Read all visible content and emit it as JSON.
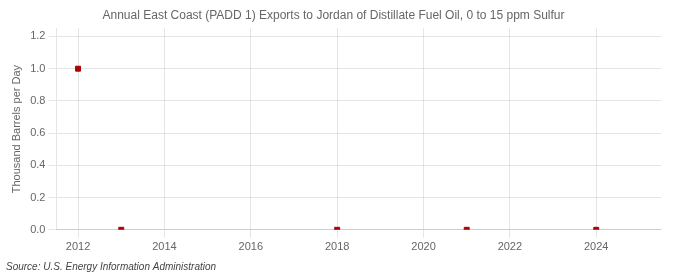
{
  "chart_data": {
    "type": "scatter",
    "title": "Annual East Coast (PADD 1) Exports to Jordan of Distillate Fuel Oil, 0 to 15 ppm Sulfur",
    "ylabel": "Thousand Barrels per Day",
    "source": "Source: U.S. Energy Information Administration",
    "x": [
      2012,
      2013,
      2018,
      2021,
      2024
    ],
    "values": [
      1.0,
      0.0,
      0.0,
      0.0,
      0.0
    ],
    "color": "#aa0000",
    "marker": "square",
    "xlim": [
      2011.5,
      2025.5
    ],
    "ylim": [
      0.0,
      1.25
    ],
    "xticks": [
      2012,
      2014,
      2016,
      2018,
      2020,
      2022,
      2024
    ],
    "yticks": [
      {
        "value": 0.0,
        "label": "0.0"
      },
      0.2,
      0.4,
      0.6,
      0.8,
      {
        "value": 1.0,
        "label": "1.0"
      },
      1.2
    ],
    "grid": true
  }
}
